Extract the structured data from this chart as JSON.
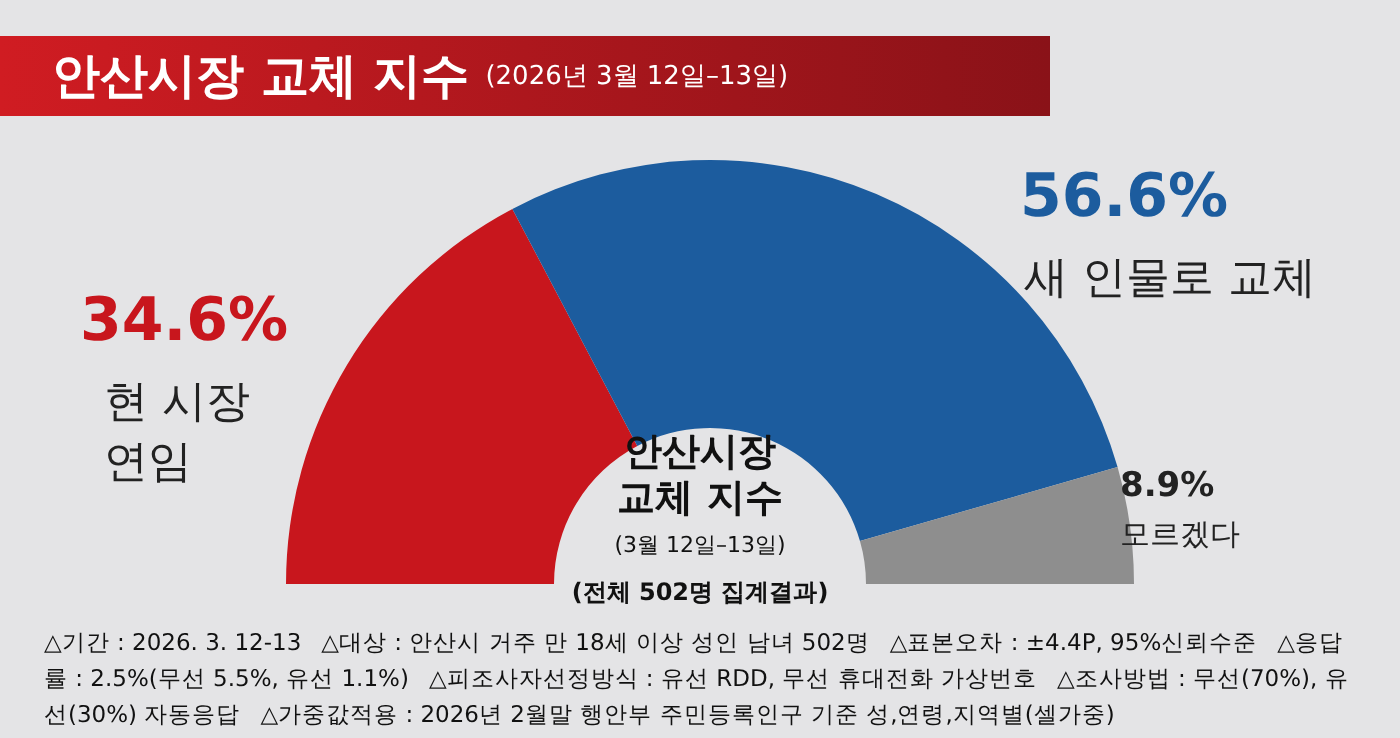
{
  "chart_data": {
    "type": "donut",
    "title": "안산시장 교체 지수",
    "subtitle": "(2026년 3월 12일–13일)",
    "categories": [
      "현 시장 연임",
      "새 인물로 교체",
      "모르겠다"
    ],
    "values": [
      34.6,
      56.6,
      8.9
    ],
    "colors": [
      "#c8161d",
      "#1c5c9e",
      "#8e8e8e"
    ],
    "value_labels": [
      "34.6%",
      "56.6%",
      "8.9%"
    ],
    "annotations": [
      "안산시장 교체 지수",
      "(3월 12일–13일)",
      "(전체 502명 집계결과)",
      "△기간 : 2026. 3. 12-13",
      "△대상 : 안산시 거주 만 18세 이상 성인 남녀 502명",
      "△표본오차 : ±4.4P, 95%신뢰수준",
      "△응답률 : 2.5%(무선 5.5%, 유선 1.1%)",
      "△피조사자선정방식 : 유선 RDD, 무선 휴대전화 가상번호",
      "△조사방법 : 무선(70%), 유선(30%) 자동응답",
      "△가중값적용 : 2026년 2월말 행안부 주민등록인구 기준 성,연령,지역별(셀가중)"
    ]
  }
}
